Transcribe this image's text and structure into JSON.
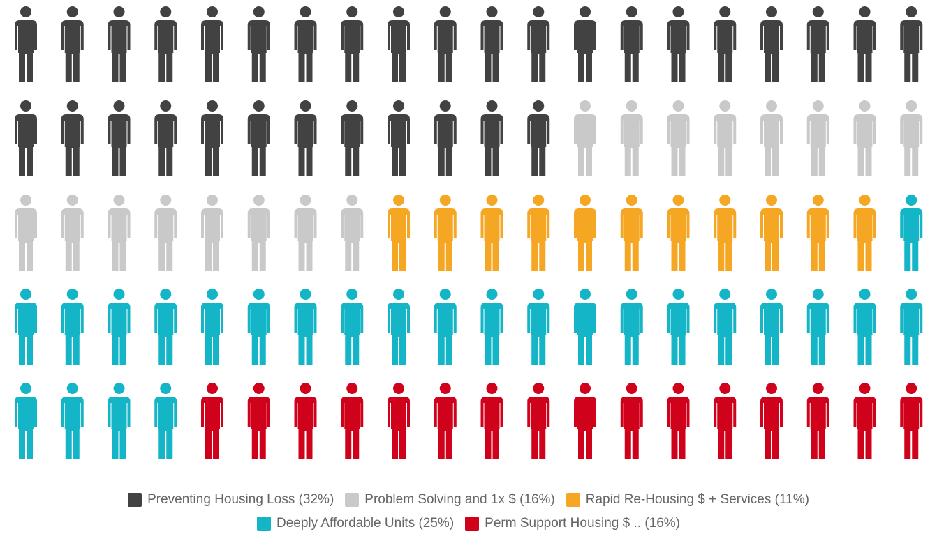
{
  "chart_data": {
    "type": "pictogram",
    "columns": 20,
    "series": [
      {
        "name": "Preventing Housing Loss (32%)",
        "color": "#424242",
        "value": 32
      },
      {
        "name": "Problem Solving and 1x $ (16%)",
        "color": "#c9c9c9",
        "value": 16
      },
      {
        "name": "Rapid Re-Housing $ + Services (11%)",
        "color": "#f5a623",
        "value": 11
      },
      {
        "name": "Deeply Affordable Units (25%)",
        "color": "#13b5c6",
        "value": 25
      },
      {
        "name": "Perm Support Housing $ .. (16%)",
        "color": "#d0021b",
        "value": 16
      }
    ]
  }
}
